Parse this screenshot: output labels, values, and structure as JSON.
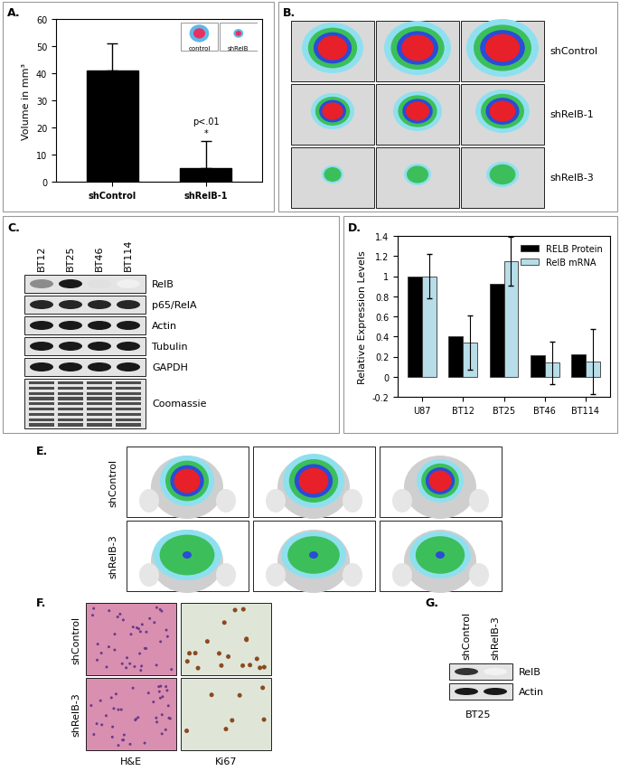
{
  "chart_data": [
    {
      "type": "bar",
      "title": "A.",
      "y_label": "Volume in mm³",
      "categories": [
        "shControl",
        "shRelB-1"
      ],
      "values": [
        41,
        5
      ],
      "errors": [
        10,
        10
      ],
      "color": "#000000",
      "ylim": [
        0,
        60
      ],
      "yticks": [
        0,
        10,
        20,
        30,
        40,
        50,
        60
      ],
      "annotations": [
        {
          "category": "shRelB-1",
          "texts": [
            "p<.01",
            "*"
          ]
        }
      ],
      "inset_labels": [
        "control",
        "shRelB"
      ]
    },
    {
      "type": "bar",
      "title": "D.",
      "y_label": "Relative Expression Levels",
      "categories": [
        "U87",
        "BT12",
        "BT25",
        "BT46",
        "BT114"
      ],
      "series": [
        {
          "name": "RELB Protein",
          "color": "#000000",
          "values": [
            1,
            0.4,
            0.92,
            0.21,
            0.22
          ]
        },
        {
          "name": "RelB mRNA",
          "color": "#b7dde8",
          "values": [
            1,
            0.34,
            1.15,
            0.14,
            0.15
          ],
          "errors": [
            0.22,
            0.27,
            0.24,
            0.21,
            0.32
          ]
        }
      ],
      "ylim": [
        -0.2,
        1.4
      ],
      "yticks": [
        -0.2,
        0,
        0.2,
        0.4,
        0.6,
        0.8,
        1,
        1.2,
        1.4
      ],
      "legend": "upper right"
    }
  ],
  "panels": {
    "B": {
      "title": "B.",
      "rows": [
        "shControl",
        "shRelB-1",
        "shRelB-3"
      ]
    },
    "C": {
      "title": "C.",
      "lanes": [
        "BT12",
        "BT25",
        "BT46",
        "BT114"
      ],
      "rows": [
        {
          "label": "RelB",
          "band_intensity": [
            0.45,
            0.9,
            0.12,
            0.06
          ]
        },
        {
          "label": "p65/RelA",
          "band_intensity": [
            0.85,
            0.85,
            0.85,
            0.85
          ]
        },
        {
          "label": "Actin",
          "band_intensity": [
            0.9,
            0.9,
            0.9,
            0.9
          ]
        },
        {
          "label": "Tubulin",
          "band_intensity": [
            0.9,
            0.9,
            0.9,
            0.9
          ]
        },
        {
          "label": "GAPDH",
          "band_intensity": [
            0.9,
            0.9,
            0.9,
            0.9
          ]
        },
        {
          "label": "Coomassie",
          "band_intensity": [
            0.7,
            0.7,
            0.7,
            0.7
          ]
        }
      ]
    },
    "E": {
      "title": "E.",
      "rows": [
        "shControl",
        "shRelB-3"
      ]
    },
    "F": {
      "title": "F.",
      "rows": [
        "shControl",
        "shRelB-3"
      ],
      "columns": [
        "H&E",
        "Ki67"
      ]
    },
    "G": {
      "title": "G.",
      "lanes": [
        "shControl",
        "shRelB-3"
      ],
      "rows": [
        {
          "label": "RelB",
          "band_intensity": [
            0.8,
            0.05
          ]
        },
        {
          "label": "Actin",
          "band_intensity": [
            0.9,
            0.9
          ]
        }
      ],
      "cell_line": "BT25"
    }
  }
}
